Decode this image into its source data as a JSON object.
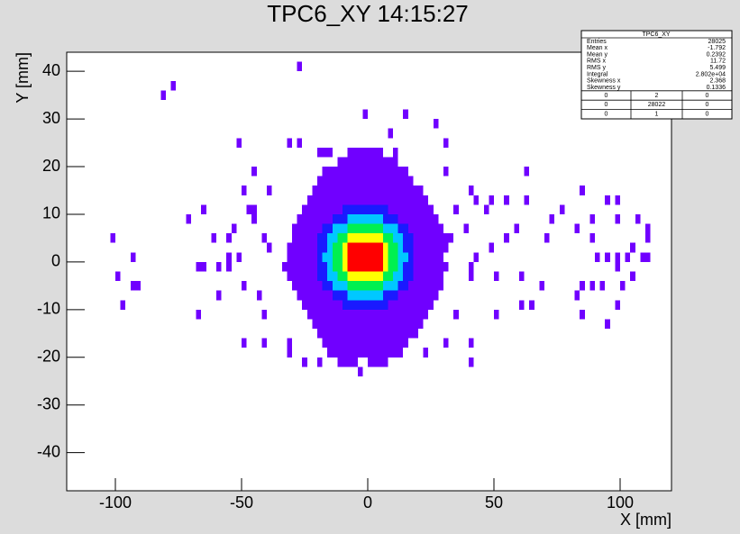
{
  "chart_data": {
    "type": "heatmap",
    "title": "TPC6_XY  14:15:27",
    "x_label": "X [mm]",
    "y_label": "Y [mm]",
    "xlim": [
      -120,
      120
    ],
    "ylim": [
      -48,
      44
    ],
    "xticks": [
      -100,
      -50,
      0,
      50,
      100
    ],
    "yticks": [
      -40,
      -30,
      -20,
      -10,
      0,
      10,
      20,
      30,
      40
    ],
    "grid": false,
    "zlim": [
      0,
      100
    ],
    "palette": [
      "#7000ff",
      "#1a1aff",
      "#00c8ff",
      "#00f050",
      "#ffff00",
      "#ff0000"
    ],
    "cells": [
      [
        -10,
        8,
        -10,
        -8,
        25
      ],
      [
        -14,
        -8,
        -8,
        -6,
        25
      ],
      [
        -8,
        6,
        -8,
        -6,
        42
      ],
      [
        6,
        12,
        -8,
        -6,
        25
      ],
      [
        -18,
        -14,
        -6,
        -4,
        25
      ],
      [
        -14,
        -8,
        -6,
        -4,
        42
      ],
      [
        -8,
        6,
        -6,
        -4,
        58
      ],
      [
        6,
        12,
        -6,
        -4,
        42
      ],
      [
        12,
        16,
        -6,
        -4,
        25
      ],
      [
        -20,
        -16,
        -4,
        -2,
        25
      ],
      [
        -16,
        -12,
        -4,
        -2,
        42
      ],
      [
        -12,
        -8,
        -4,
        -2,
        58
      ],
      [
        -8,
        6,
        -4,
        -2,
        75
      ],
      [
        6,
        10,
        -4,
        -2,
        58
      ],
      [
        10,
        14,
        -4,
        -2,
        42
      ],
      [
        14,
        18,
        -4,
        -2,
        25
      ],
      [
        -20,
        -16,
        -2,
        0,
        25
      ],
      [
        -16,
        -14,
        -2,
        0,
        42
      ],
      [
        -14,
        -10,
        -2,
        0,
        58
      ],
      [
        -10,
        -8,
        -2,
        0,
        75
      ],
      [
        -8,
        6,
        -2,
        0,
        95
      ],
      [
        6,
        8,
        -2,
        0,
        75
      ],
      [
        8,
        12,
        -2,
        0,
        58
      ],
      [
        12,
        14,
        -2,
        0,
        42
      ],
      [
        14,
        18,
        -2,
        0,
        25
      ],
      [
        -20,
        -18,
        0,
        2,
        25
      ],
      [
        -18,
        -14,
        0,
        2,
        42
      ],
      [
        -14,
        -10,
        0,
        2,
        58
      ],
      [
        -10,
        -8,
        0,
        2,
        75
      ],
      [
        -8,
        6,
        0,
        2,
        95
      ],
      [
        6,
        8,
        0,
        2,
        75
      ],
      [
        8,
        12,
        0,
        2,
        58
      ],
      [
        12,
        16,
        0,
        2,
        42
      ],
      [
        16,
        18,
        0,
        2,
        25
      ],
      [
        -20,
        -16,
        2,
        4,
        25
      ],
      [
        -16,
        -14,
        2,
        4,
        42
      ],
      [
        -14,
        -10,
        2,
        4,
        58
      ],
      [
        -10,
        -8,
        2,
        4,
        75
      ],
      [
        -8,
        6,
        2,
        4,
        95
      ],
      [
        6,
        8,
        2,
        4,
        75
      ],
      [
        8,
        12,
        2,
        4,
        58
      ],
      [
        12,
        14,
        2,
        4,
        42
      ],
      [
        14,
        18,
        2,
        4,
        25
      ],
      [
        -20,
        -16,
        4,
        6,
        25
      ],
      [
        -16,
        -12,
        4,
        6,
        42
      ],
      [
        -12,
        -8,
        4,
        6,
        58
      ],
      [
        -8,
        6,
        4,
        6,
        75
      ],
      [
        6,
        10,
        4,
        6,
        58
      ],
      [
        10,
        14,
        4,
        6,
        42
      ],
      [
        14,
        18,
        4,
        6,
        25
      ],
      [
        -18,
        -14,
        6,
        8,
        25
      ],
      [
        -14,
        -8,
        6,
        8,
        42
      ],
      [
        -8,
        6,
        6,
        8,
        58
      ],
      [
        6,
        12,
        6,
        8,
        42
      ],
      [
        12,
        16,
        6,
        8,
        25
      ],
      [
        -14,
        -8,
        8,
        10,
        25
      ],
      [
        -8,
        6,
        8,
        10,
        42
      ],
      [
        6,
        12,
        8,
        10,
        25
      ],
      [
        -10,
        8,
        10,
        12,
        25
      ],
      [
        -20,
        -14,
        22,
        24,
        5
      ],
      [
        -8,
        6,
        22,
        24,
        5
      ],
      [
        10,
        12,
        22,
        24,
        5
      ],
      [
        -12,
        12,
        20,
        22,
        5
      ],
      [
        -18,
        16,
        18,
        20,
        5
      ],
      [
        -20,
        18,
        16,
        18,
        5
      ],
      [
        -22,
        22,
        14,
        16,
        5
      ],
      [
        -24,
        24,
        12,
        14,
        5
      ],
      [
        -26,
        -10,
        10,
        12,
        5
      ],
      [
        8,
        26,
        10,
        12,
        5
      ],
      [
        -28,
        -14,
        8,
        10,
        5
      ],
      [
        12,
        28,
        8,
        10,
        5
      ],
      [
        -30,
        -18,
        6,
        8,
        5
      ],
      [
        16,
        30,
        6,
        8,
        5
      ],
      [
        -30,
        -20,
        4,
        6,
        5
      ],
      [
        18,
        32,
        4,
        6,
        5
      ],
      [
        -32,
        -20,
        2,
        4,
        5
      ],
      [
        18,
        32,
        2,
        4,
        5
      ],
      [
        -32,
        -20,
        0,
        2,
        5
      ],
      [
        18,
        30,
        0,
        2,
        5
      ],
      [
        -34,
        -20,
        -2,
        0,
        5
      ],
      [
        18,
        32,
        -2,
        0,
        5
      ],
      [
        -32,
        -20,
        -4,
        -2,
        5
      ],
      [
        18,
        30,
        -4,
        -2,
        5
      ],
      [
        -30,
        -18,
        -6,
        -4,
        5
      ],
      [
        16,
        30,
        -6,
        -4,
        5
      ],
      [
        -28,
        -14,
        -8,
        -6,
        5
      ],
      [
        12,
        28,
        -8,
        -6,
        5
      ],
      [
        -26,
        -10,
        -10,
        -8,
        5
      ],
      [
        8,
        26,
        -10,
        -8,
        5
      ],
      [
        -24,
        24,
        -12,
        -10,
        5
      ],
      [
        -22,
        22,
        -14,
        -12,
        5
      ],
      [
        -20,
        20,
        -16,
        -14,
        5
      ],
      [
        -18,
        16,
        -18,
        -16,
        5
      ],
      [
        -16,
        14,
        -20,
        -18,
        5
      ],
      [
        -12,
        -4,
        -22,
        -20,
        5
      ],
      [
        0,
        8,
        -22,
        -20,
        5
      ],
      [
        -28,
        -26,
        40,
        42,
        1
      ],
      [
        -78,
        -76,
        36,
        38,
        1
      ],
      [
        -82,
        -80,
        34,
        36,
        1
      ],
      [
        -2,
        0,
        30,
        32,
        1
      ],
      [
        14,
        16,
        30,
        32,
        1
      ],
      [
        26,
        28,
        28,
        30,
        1
      ],
      [
        -52,
        -50,
        24,
        26,
        1
      ],
      [
        -32,
        -30,
        24,
        26,
        1
      ],
      [
        -28,
        -26,
        24,
        26,
        1
      ],
      [
        8,
        10,
        26,
        28,
        1
      ],
      [
        30,
        32,
        24,
        26,
        1
      ],
      [
        62,
        64,
        18,
        20,
        1
      ],
      [
        -46,
        -44,
        18,
        20,
        1
      ],
      [
        30,
        32,
        18,
        20,
        1
      ],
      [
        -50,
        -48,
        14,
        16,
        1
      ],
      [
        -40,
        -38,
        14,
        16,
        1
      ],
      [
        40,
        42,
        14,
        16,
        1
      ],
      [
        84,
        86,
        14,
        16,
        1
      ],
      [
        94,
        96,
        12,
        14,
        1
      ],
      [
        98,
        100,
        12,
        14,
        1
      ],
      [
        -66,
        -64,
        10,
        12,
        1
      ],
      [
        42,
        44,
        12,
        14,
        1
      ],
      [
        48,
        50,
        12,
        14,
        1
      ],
      [
        54,
        56,
        12,
        14,
        1
      ],
      [
        62,
        64,
        12,
        14,
        1
      ],
      [
        -46,
        -44,
        10,
        12,
        1
      ],
      [
        -72,
        -70,
        8,
        10,
        1
      ],
      [
        -56,
        -54,
        4,
        6,
        1
      ],
      [
        -102,
        -100,
        4,
        6,
        1
      ],
      [
        -94,
        -92,
        0,
        2,
        1
      ],
      [
        -100,
        -98,
        -4,
        -2,
        1
      ],
      [
        -94,
        -92,
        -6,
        -4,
        1
      ],
      [
        -92,
        -90,
        -6,
        -4,
        1
      ],
      [
        -98,
        -96,
        -10,
        -8,
        1
      ],
      [
        -68,
        -66,
        -2,
        0,
        1
      ],
      [
        -66,
        -64,
        -2,
        0,
        1
      ],
      [
        -60,
        -58,
        -8,
        -6,
        1
      ],
      [
        -68,
        -66,
        -12,
        -10,
        1
      ],
      [
        -50,
        -48,
        -18,
        -16,
        1
      ],
      [
        -42,
        -40,
        -18,
        -16,
        1
      ],
      [
        -32,
        -30,
        -18,
        -16,
        1
      ],
      [
        -32,
        -30,
        -20,
        -18,
        1
      ],
      [
        -26,
        -24,
        -22,
        -20,
        1
      ],
      [
        -4,
        -2,
        -24,
        -22,
        1
      ],
      [
        40,
        42,
        -18,
        -16,
        1
      ],
      [
        40,
        42,
        -22,
        -20,
        1
      ],
      [
        50,
        52,
        -12,
        -10,
        1
      ],
      [
        60,
        62,
        -10,
        -8,
        1
      ],
      [
        64,
        66,
        -10,
        -8,
        1
      ],
      [
        68,
        70,
        -6,
        -4,
        1
      ],
      [
        82,
        84,
        -8,
        -6,
        1
      ],
      [
        84,
        86,
        -12,
        -10,
        1
      ],
      [
        94,
        96,
        -14,
        -12,
        1
      ],
      [
        98,
        100,
        -10,
        -8,
        1
      ],
      [
        90,
        92,
        0,
        2,
        1
      ],
      [
        94,
        96,
        0,
        2,
        1
      ],
      [
        98,
        100,
        0,
        2,
        1
      ],
      [
        102,
        104,
        0,
        2,
        1
      ],
      [
        104,
        106,
        2,
        4,
        1
      ],
      [
        108,
        110,
        0,
        2,
        1
      ],
      [
        98,
        100,
        -2,
        0,
        1
      ],
      [
        104,
        106,
        -4,
        -2,
        1
      ],
      [
        110,
        112,
        4,
        6,
        1
      ],
      [
        88,
        90,
        4,
        6,
        1
      ],
      [
        84,
        86,
        -6,
        -4,
        1
      ],
      [
        88,
        90,
        -6,
        -4,
        1
      ],
      [
        92,
        94,
        -6,
        -4,
        1
      ],
      [
        100,
        102,
        -6,
        -4,
        1
      ],
      [
        110,
        112,
        6,
        8,
        1
      ],
      [
        110,
        112,
        0,
        2,
        1
      ],
      [
        88,
        90,
        8,
        10,
        1
      ],
      [
        98,
        100,
        8,
        10,
        1
      ],
      [
        106,
        108,
        8,
        10,
        1
      ],
      [
        72,
        74,
        8,
        10,
        1
      ],
      [
        76,
        78,
        10,
        12,
        1
      ],
      [
        82,
        84,
        6,
        8,
        1
      ],
      [
        70,
        72,
        4,
        6,
        1
      ],
      [
        54,
        56,
        4,
        6,
        1
      ],
      [
        58,
        60,
        6,
        8,
        1
      ],
      [
        48,
        50,
        2,
        4,
        1
      ],
      [
        42,
        44,
        0,
        2,
        1
      ],
      [
        40,
        42,
        -2,
        0,
        1
      ],
      [
        50,
        52,
        -4,
        -2,
        1
      ],
      [
        60,
        62,
        -4,
        -2,
        1
      ],
      [
        46,
        48,
        10,
        12,
        1
      ],
      [
        34,
        36,
        10,
        12,
        1
      ],
      [
        38,
        40,
        6,
        8,
        1
      ],
      [
        32,
        34,
        4,
        6,
        1
      ],
      [
        40,
        42,
        -4,
        -2,
        1
      ],
      [
        34,
        36,
        -12,
        -10,
        1
      ],
      [
        30,
        32,
        -18,
        -16,
        1
      ],
      [
        22,
        24,
        -20,
        -18,
        1
      ],
      [
        8,
        10,
        -20,
        -18,
        1
      ],
      [
        -10,
        -8,
        -22,
        -20,
        1
      ],
      [
        -20,
        -18,
        -22,
        -20,
        1
      ],
      [
        -56,
        -54,
        0,
        2,
        1
      ],
      [
        -52,
        -50,
        0,
        2,
        1
      ],
      [
        -60,
        -58,
        -2,
        0,
        1
      ],
      [
        -56,
        -54,
        -2,
        0,
        1
      ],
      [
        -50,
        -48,
        -6,
        -4,
        1
      ],
      [
        -44,
        -42,
        -8,
        -6,
        1
      ],
      [
        -42,
        -40,
        -12,
        -10,
        1
      ],
      [
        -48,
        -46,
        10,
        12,
        1
      ],
      [
        -46,
        -44,
        8,
        10,
        1
      ],
      [
        -42,
        -40,
        4,
        6,
        1
      ],
      [
        -40,
        -38,
        2,
        4,
        1
      ],
      [
        -62,
        -60,
        4,
        6,
        1
      ],
      [
        -54,
        -52,
        6,
        8,
        1
      ]
    ],
    "stats": {
      "title": "TPC6_XY",
      "rows": [
        {
          "label": "Entries",
          "value": "28025"
        },
        {
          "label": "Mean x",
          "value": "-1.792"
        },
        {
          "label": "Mean y",
          "value": "0.2392"
        },
        {
          "label": "RMS x",
          "value": "11.72"
        },
        {
          "label": "RMS y",
          "value": "5.499"
        },
        {
          "label": "Integral",
          "value": "2.802e+04"
        },
        {
          "label": "Skewness x",
          "value": "2.368"
        },
        {
          "label": "Skewness y",
          "value": "0.1336"
        }
      ],
      "table": [
        [
          "0",
          "2",
          "0"
        ],
        [
          "0",
          "28022",
          "0"
        ],
        [
          "0",
          "1",
          "0"
        ]
      ]
    }
  }
}
